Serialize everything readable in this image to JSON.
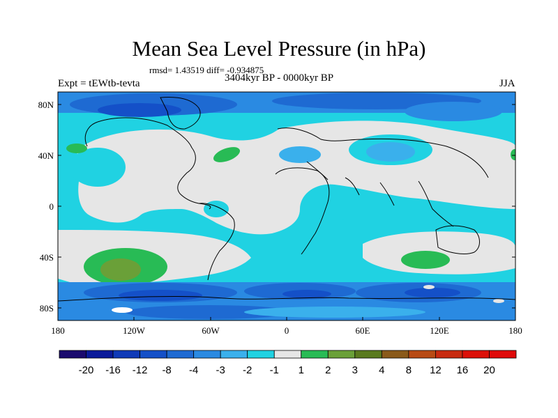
{
  "title": "Mean Sea Level Pressure (in hPa)",
  "stats": "rmsd= 1.43519  diff= -0.934875",
  "left_label": "Expt = tEWtb-tevta",
  "center_label": "3404kyr BP - 0000kyr BP",
  "right_label": "JJA",
  "lat_ticks": [
    "80N",
    "40N",
    "0",
    "40S",
    "80S"
  ],
  "lon_ticks": [
    "180",
    "120W",
    "60W",
    "0",
    "60E",
    "120E",
    "180"
  ],
  "colorbar": {
    "labels": [
      "-20",
      "-16",
      "-12",
      "-8",
      "-4",
      "-3",
      "-2",
      "-1",
      "1",
      "2",
      "3",
      "4",
      "8",
      "12",
      "16",
      "20"
    ],
    "colors": [
      "#1a0a6e",
      "#0a1a9a",
      "#0f3ab8",
      "#1450c8",
      "#1e6ad2",
      "#2a8ae2",
      "#3ab0ec",
      "#20d2e2",
      "#e6e6e6",
      "#28bb55",
      "#6aa038",
      "#5a7a1e",
      "#8a5a1a",
      "#b84a14",
      "#c82a10",
      "#dc1008",
      "#e00a0a"
    ]
  }
}
